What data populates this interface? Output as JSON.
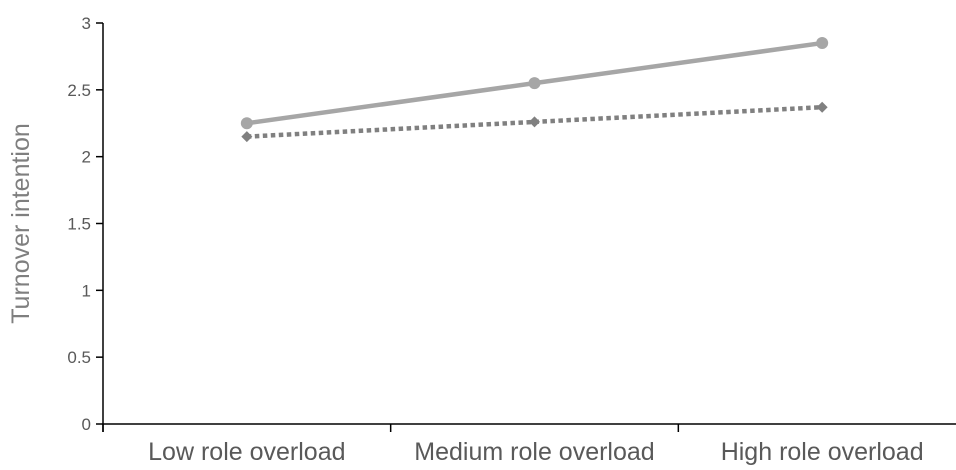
{
  "chart_data": {
    "type": "line",
    "title": "",
    "xlabel": "",
    "ylabel": "Turnover intention",
    "categories": [
      "Low role overload",
      "Medium role overload",
      "High role overload"
    ],
    "ylim": [
      0,
      3
    ],
    "yticks": [
      0,
      0.5,
      1,
      1.5,
      2,
      2.5,
      3
    ],
    "ytick_labels": [
      "0",
      "0.5",
      "1",
      "1.5",
      "2",
      "2.5",
      "3"
    ],
    "grid": false,
    "legend": "none",
    "series": [
      {
        "values": [
          2.25,
          2.55,
          2.85
        ],
        "color": "#a6a6a6",
        "line_style": "solid",
        "marker": "circle"
      },
      {
        "values": [
          2.15,
          2.26,
          2.37
        ],
        "color": "#808080",
        "line_style": "dotted",
        "marker": "diamond"
      }
    ]
  }
}
